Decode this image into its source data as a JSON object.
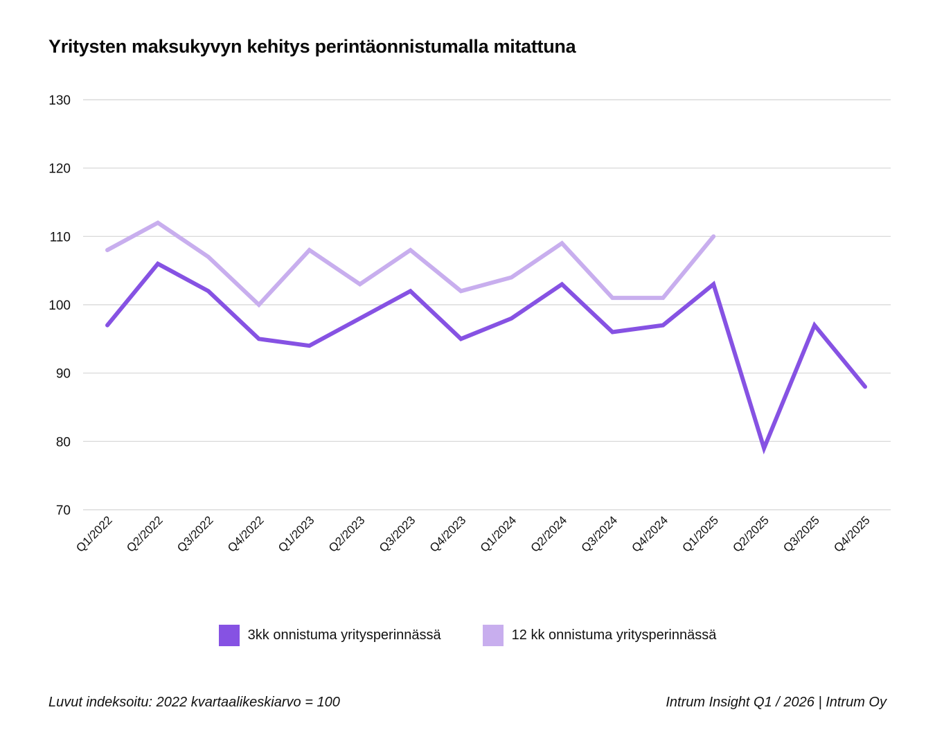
{
  "title": "Yritysten maksukyvyn kehitys perintäonnistumalla mitattuna",
  "footer": {
    "note": "Luvut indeksoitu: 2022 kvartaalikeskiarvo = 100",
    "source": "Intrum Insight Q1 / 2026 | Intrum Oy"
  },
  "legend": {
    "items": [
      {
        "label": "3kk onnistuma yritysperinnässä",
        "color": "#8652E3"
      },
      {
        "label": "12 kk onnistuma yritysperinnässä",
        "color": "#C8AEEE"
      }
    ]
  },
  "chart_data": {
    "type": "line",
    "title": "Yritysten maksukyvyn kehitys perintäonnistumalla mitattuna",
    "xlabel": "",
    "ylabel": "",
    "ylim": [
      70,
      130
    ],
    "yticks": [
      70,
      80,
      90,
      100,
      110,
      120,
      130
    ],
    "grid": true,
    "legend_position": "bottom",
    "categories": [
      "Q1/2022",
      "Q2/2022",
      "Q3/2022",
      "Q4/2022",
      "Q1/2023",
      "Q2/2023",
      "Q3/2023",
      "Q4/2023",
      "Q1/2024",
      "Q2/2024",
      "Q3/2024",
      "Q4/2024",
      "Q1/2025",
      "Q2/2025",
      "Q3/2025",
      "Q4/2025"
    ],
    "series": [
      {
        "name": "3kk onnistuma yritysperinnässä",
        "color": "#8652E3",
        "values": [
          97,
          106,
          102,
          95,
          94,
          98,
          102,
          95,
          98,
          103,
          96,
          97,
          103,
          79,
          97,
          88
        ]
      },
      {
        "name": "12 kk onnistuma yritysperinnässä",
        "color": "#C8AEEE",
        "values": [
          108,
          112,
          107,
          100,
          108,
          103,
          108,
          102,
          104,
          109,
          101,
          101,
          110,
          null,
          null,
          null
        ]
      }
    ],
    "annotations": [
      "Luvut indeksoitu: 2022 kvartaalikeskiarvo = 100"
    ]
  }
}
